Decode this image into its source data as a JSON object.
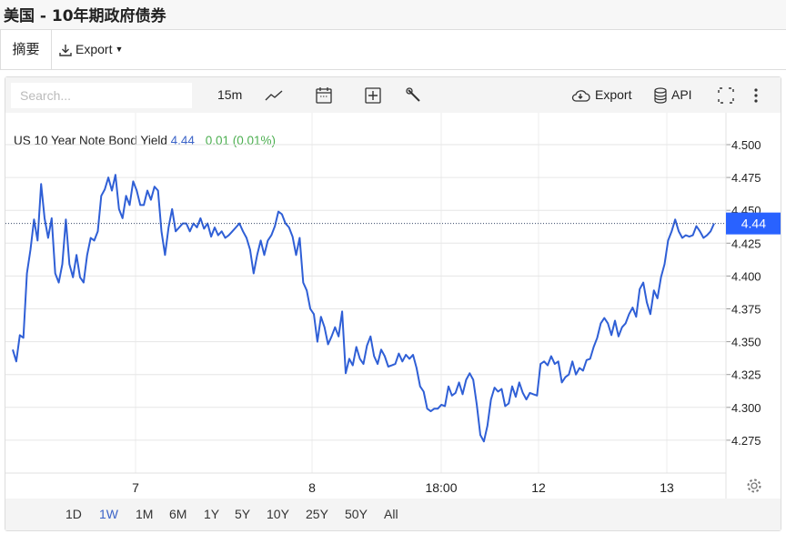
{
  "title": "美国 - 10年期政府债券",
  "tabs": {
    "summary": "摘要",
    "export": "Export"
  },
  "toolbar": {
    "search_placeholder": "Search...",
    "interval": "15m",
    "export": "Export",
    "api": "API",
    "icons": [
      "line-chart-icon",
      "calendar-icon",
      "add-indicator-icon",
      "wrench-icon",
      "cloud-download-icon",
      "database-icon",
      "fullscreen-icon",
      "more-vertical-icon"
    ]
  },
  "legend": {
    "name": "US 10 Year Note Bond Yield",
    "value": "4.44",
    "change": "0.01 (0.01%)"
  },
  "ranges": [
    "1D",
    "1W",
    "1M",
    "6M",
    "1Y",
    "5Y",
    "10Y",
    "25Y",
    "50Y",
    "All"
  ],
  "active_range": "1W",
  "colors": {
    "line": "#2f5fd6",
    "price_label": "#2962ff",
    "change": "#4caf50"
  },
  "chart_data": {
    "type": "line",
    "x_tick_labels": [
      "7",
      "8",
      "18:00",
      "12",
      "13"
    ],
    "y_tick_labels": [
      "4.500",
      "4.475",
      "4.450",
      "4.425",
      "4.400",
      "4.375",
      "4.350",
      "4.325",
      "4.300",
      "4.275"
    ],
    "ylim": [
      4.268,
      4.52
    ],
    "grid": true,
    "last_price_label": "4.44",
    "series": [
      {
        "values": [
          4.344,
          4.335,
          4.355,
          4.353,
          4.402,
          4.42,
          4.443,
          4.427,
          4.47,
          4.444,
          4.429,
          4.444,
          4.402,
          4.395,
          4.409,
          4.443,
          4.409,
          4.399,
          4.416,
          4.399,
          4.395,
          4.416,
          4.429,
          4.427,
          4.434,
          4.461,
          4.466,
          4.475,
          4.465,
          4.477,
          4.451,
          4.444,
          4.461,
          4.454,
          4.472,
          4.465,
          4.454,
          4.454,
          4.465,
          4.458,
          4.468,
          4.465,
          4.434,
          4.416,
          4.437,
          4.451,
          4.434,
          4.437,
          4.44,
          4.44,
          4.434,
          4.44,
          4.437,
          4.444,
          4.436,
          4.44,
          4.43,
          4.437,
          4.431,
          4.434,
          4.429,
          4.431,
          4.434,
          4.437,
          4.44,
          4.434,
          4.429,
          4.42,
          4.402,
          4.416,
          4.427,
          4.416,
          4.427,
          4.431,
          4.438,
          4.449,
          4.447,
          4.44,
          4.437,
          4.43,
          4.416,
          4.429,
          4.395,
          4.389,
          4.375,
          4.371,
          4.35,
          4.369,
          4.361,
          4.348,
          4.354,
          4.361,
          4.354,
          4.373,
          4.326,
          4.337,
          4.332,
          4.346,
          4.337,
          4.333,
          4.347,
          4.354,
          4.339,
          4.333,
          4.344,
          4.339,
          4.331,
          4.332,
          4.333,
          4.341,
          4.335,
          4.34,
          4.337,
          4.34,
          4.33,
          4.316,
          4.312,
          4.299,
          4.297,
          4.299,
          4.299,
          4.302,
          4.301,
          4.316,
          4.309,
          4.311,
          4.319,
          4.31,
          4.321,
          4.326,
          4.321,
          4.302,
          4.279,
          4.274,
          4.286,
          4.306,
          4.315,
          4.312,
          4.314,
          4.301,
          4.303,
          4.316,
          4.308,
          4.319,
          4.311,
          4.306,
          4.311,
          4.31,
          4.309,
          4.333,
          4.335,
          4.332,
          4.339,
          4.333,
          4.335,
          4.319,
          4.323,
          4.325,
          4.335,
          4.325,
          4.33,
          4.328,
          4.336,
          4.337,
          4.346,
          4.353,
          4.364,
          4.368,
          4.364,
          4.355,
          4.366,
          4.354,
          4.361,
          4.364,
          4.371,
          4.376,
          4.369,
          4.39,
          4.395,
          4.38,
          4.371,
          4.389,
          4.383,
          4.399,
          4.409,
          4.427,
          4.434,
          4.443,
          4.434,
          4.429,
          4.431,
          4.43,
          4.431,
          4.438,
          4.434,
          4.429,
          4.431,
          4.434,
          4.44
        ]
      }
    ]
  }
}
